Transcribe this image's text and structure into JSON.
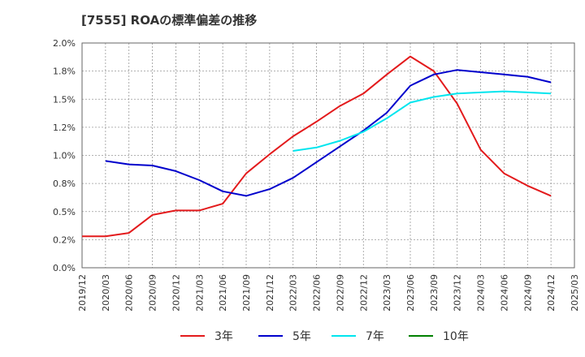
{
  "chart_data": {
    "type": "line",
    "title": "[7555]  ROAの標準偏差の推移",
    "x": [
      "2019/12",
      "2020/03",
      "2020/06",
      "2020/09",
      "2020/12",
      "2021/03",
      "2021/06",
      "2021/09",
      "2021/12",
      "2022/03",
      "2022/06",
      "2022/09",
      "2022/12",
      "2023/03",
      "2023/06",
      "2023/09",
      "2023/12",
      "2024/03",
      "2024/06",
      "2024/09",
      "2024/12",
      "2025/03"
    ],
    "ylim": [
      0,
      2.0
    ],
    "yticks": [
      "0.0%",
      "0.2%",
      "0.5%",
      "0.8%",
      "1.0%",
      "1.2%",
      "1.5%",
      "1.8%",
      "2.0%"
    ],
    "grid": true,
    "legend_position": "bottom",
    "series": [
      {
        "name": "3年",
        "color": "#e31a1c",
        "values": [
          0.28,
          0.28,
          0.31,
          0.47,
          0.51,
          0.51,
          0.57,
          0.84,
          1.01,
          1.17,
          1.3,
          1.44,
          1.55,
          1.72,
          1.88,
          1.75,
          1.46,
          1.05,
          0.84,
          0.73,
          0.64,
          null
        ]
      },
      {
        "name": "5年",
        "color": "#0000cc",
        "values": [
          null,
          0.95,
          0.92,
          0.91,
          0.86,
          0.78,
          0.68,
          0.64,
          0.7,
          0.8,
          0.94,
          1.08,
          1.22,
          1.38,
          1.62,
          1.72,
          1.76,
          1.74,
          1.72,
          1.7,
          1.65,
          null
        ]
      },
      {
        "name": "7年",
        "color": "#00e5ee",
        "values": [
          null,
          null,
          null,
          null,
          null,
          null,
          null,
          null,
          null,
          1.04,
          1.07,
          1.13,
          1.21,
          1.33,
          1.47,
          1.52,
          1.55,
          1.56,
          1.57,
          1.56,
          1.55,
          null
        ]
      },
      {
        "name": "10年",
        "color": "#008000",
        "values": [
          null,
          null,
          null,
          null,
          null,
          null,
          null,
          null,
          null,
          null,
          null,
          null,
          null,
          null,
          null,
          null,
          null,
          null,
          null,
          null,
          null,
          null
        ]
      }
    ]
  }
}
